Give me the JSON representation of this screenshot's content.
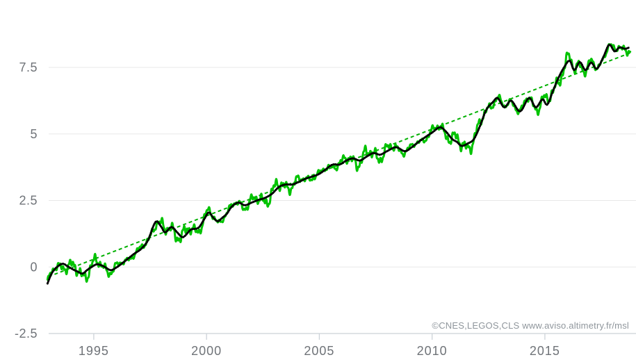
{
  "page": {
    "background": "#ffffff"
  },
  "footer": {
    "credit": "©CNES,LEGOS,CLS www.aviso.altimetry.fr/msl",
    "color": "#8f969c"
  },
  "chart_data": {
    "type": "line",
    "title": "",
    "xlabel": "",
    "ylabel": "",
    "xlim": [
      1993.0,
      2019.1
    ],
    "ylim": [
      -2.5,
      8.9
    ],
    "grid": "horizontal-only",
    "legend": "none",
    "x_ticks": [
      1995,
      2000,
      2005,
      2010,
      2015
    ],
    "x_tick_labels": [
      "1995",
      "2000",
      "2005",
      "2010",
      "2015"
    ],
    "y_ticks": [
      -2.5,
      0,
      2.5,
      5,
      7.5
    ],
    "y_tick_labels": [
      "-2.5",
      "0",
      "2.5",
      "5",
      "7.5"
    ],
    "gridline_color": "#e8e8e8",
    "axis_line_color": "#ccd2d8",
    "tick_label_color": "#6f7378",
    "series": [
      {
        "name": "sea level raw (seasonal signal included)",
        "color": "#00c300",
        "style": "solid",
        "line_width": 3,
        "derivation": "smoothed series plus seasonal oscillation",
        "range_years": [
          1992.95,
          2018.78
        ],
        "sample_step": 0.01,
        "oscillation": {
          "components": [
            {
              "amplitude": 0.13,
              "period": 1.0,
              "phase": 0.8
            },
            {
              "amplitude": 0.11,
              "period": 0.5,
              "phase": 1.7
            },
            {
              "amplitude": 0.07,
              "period": 0.23,
              "phase": 0.5
            },
            {
              "amplitude": 0.05,
              "period": 0.11,
              "phase": 2.2
            }
          ],
          "envelope": {
            "base": 1.0,
            "amplitude": 0.45,
            "period": 4.2,
            "ref_year": 1993.5
          }
        }
      },
      {
        "name": "sea level smoothed",
        "color": "#000000",
        "style": "dotted-solid",
        "line_width": 2.2,
        "points": [
          [
            1992.95,
            -0.62
          ],
          [
            1993.1,
            -0.3
          ],
          [
            1993.25,
            -0.1
          ],
          [
            1993.5,
            0.08
          ],
          [
            1993.65,
            0.12
          ],
          [
            1993.85,
            0.02
          ],
          [
            1994.1,
            -0.1
          ],
          [
            1994.3,
            -0.18
          ],
          [
            1994.5,
            -0.25
          ],
          [
            1994.7,
            -0.12
          ],
          [
            1994.9,
            0.0
          ],
          [
            1995.15,
            0.1
          ],
          [
            1995.45,
            0.02
          ],
          [
            1995.75,
            -0.12
          ],
          [
            1996.0,
            -0.02
          ],
          [
            1996.2,
            0.1
          ],
          [
            1996.5,
            0.3
          ],
          [
            1996.8,
            0.5
          ],
          [
            1997.1,
            0.68
          ],
          [
            1997.4,
            1.0
          ],
          [
            1997.75,
            1.7
          ],
          [
            1998.0,
            1.5
          ],
          [
            1998.15,
            1.3
          ],
          [
            1998.45,
            1.5
          ],
          [
            1998.7,
            1.3
          ],
          [
            1998.95,
            1.12
          ],
          [
            1999.3,
            1.4
          ],
          [
            1999.65,
            1.48
          ],
          [
            1999.9,
            1.8
          ],
          [
            2000.1,
            2.05
          ],
          [
            2000.3,
            1.85
          ],
          [
            2000.5,
            1.72
          ],
          [
            2000.7,
            1.85
          ],
          [
            2000.9,
            2.0
          ],
          [
            2001.1,
            2.25
          ],
          [
            2001.4,
            2.42
          ],
          [
            2001.7,
            2.32
          ],
          [
            2002.0,
            2.42
          ],
          [
            2002.3,
            2.52
          ],
          [
            2002.6,
            2.6
          ],
          [
            2002.9,
            2.75
          ],
          [
            2003.2,
            3.0
          ],
          [
            2003.5,
            3.1
          ],
          [
            2003.8,
            3.1
          ],
          [
            2004.1,
            3.2
          ],
          [
            2004.4,
            3.32
          ],
          [
            2004.7,
            3.4
          ],
          [
            2005.0,
            3.5
          ],
          [
            2005.3,
            3.68
          ],
          [
            2005.6,
            3.85
          ],
          [
            2005.9,
            3.85
          ],
          [
            2006.2,
            4.0
          ],
          [
            2006.5,
            4.08
          ],
          [
            2006.8,
            4.0
          ],
          [
            2007.1,
            4.15
          ],
          [
            2007.4,
            4.28
          ],
          [
            2007.7,
            4.22
          ],
          [
            2008.0,
            4.35
          ],
          [
            2008.4,
            4.5
          ],
          [
            2008.8,
            4.35
          ],
          [
            2009.1,
            4.5
          ],
          [
            2009.4,
            4.7
          ],
          [
            2009.7,
            4.88
          ],
          [
            2010.0,
            5.05
          ],
          [
            2010.35,
            5.25
          ],
          [
            2010.6,
            5.1
          ],
          [
            2010.9,
            4.8
          ],
          [
            2011.1,
            4.7
          ],
          [
            2011.3,
            4.55
          ],
          [
            2011.6,
            4.65
          ],
          [
            2011.85,
            4.8
          ],
          [
            2012.1,
            5.25
          ],
          [
            2012.4,
            5.9
          ],
          [
            2012.7,
            6.2
          ],
          [
            2012.9,
            6.35
          ],
          [
            2013.2,
            6.0
          ],
          [
            2013.5,
            6.25
          ],
          [
            2013.9,
            5.85
          ],
          [
            2014.3,
            6.35
          ],
          [
            2014.6,
            6.0
          ],
          [
            2014.9,
            6.3
          ],
          [
            2015.1,
            6.1
          ],
          [
            2015.35,
            6.6
          ],
          [
            2015.6,
            7.1
          ],
          [
            2015.85,
            7.5
          ],
          [
            2016.1,
            7.75
          ],
          [
            2016.3,
            7.4
          ],
          [
            2016.55,
            7.7
          ],
          [
            2016.8,
            7.4
          ],
          [
            2017.05,
            7.68
          ],
          [
            2017.3,
            7.45
          ],
          [
            2017.6,
            7.9
          ],
          [
            2017.85,
            8.35
          ],
          [
            2018.1,
            8.1
          ],
          [
            2018.3,
            8.25
          ],
          [
            2018.55,
            8.2
          ],
          [
            2018.75,
            8.25
          ]
        ]
      },
      {
        "name": "linear trend",
        "color": "#00b000",
        "style": "dashed",
        "line_width": 2,
        "points": [
          [
            1993.0,
            -0.36
          ],
          [
            2018.8,
            8.05
          ]
        ]
      }
    ]
  }
}
